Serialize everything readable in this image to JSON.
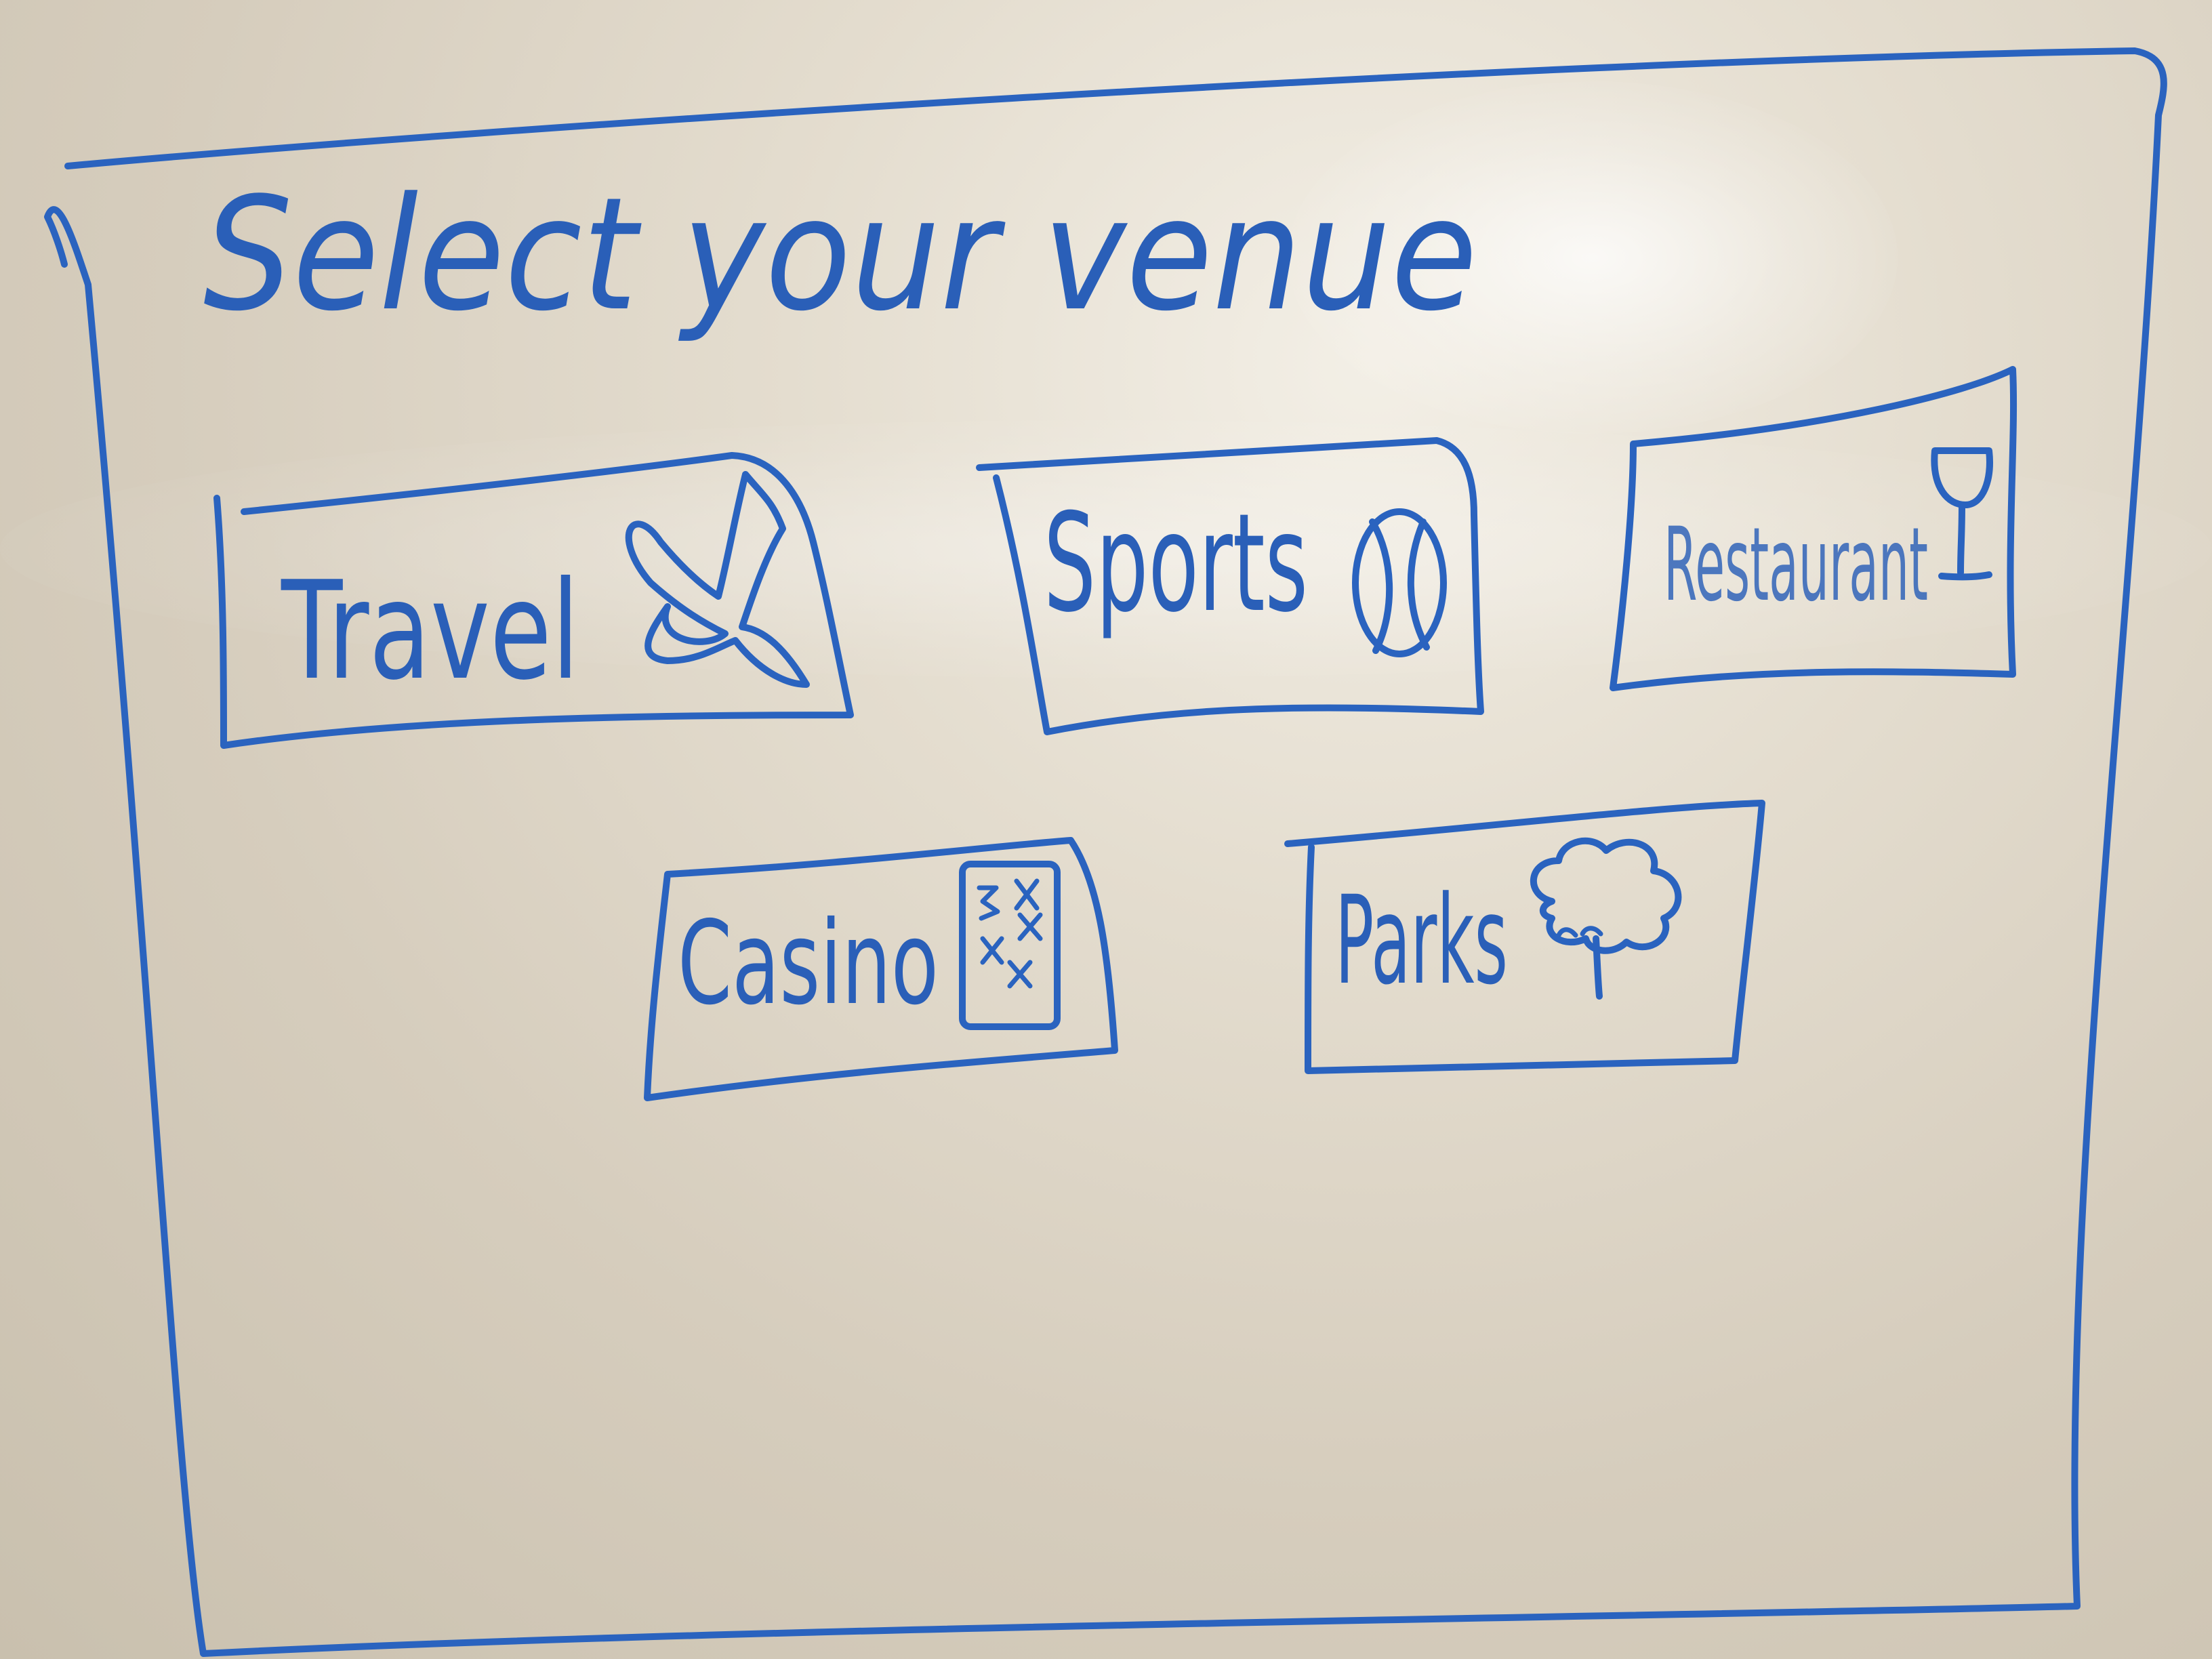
{
  "screen": {
    "title": "Select your venue"
  },
  "venues": [
    {
      "label": "Travel",
      "icon": "plane-icon"
    },
    {
      "label": "Sports",
      "icon": "ball-icon"
    },
    {
      "label": "Restaurant",
      "icon": "wine-glass-icon"
    },
    {
      "label": "Casino",
      "icon": "playing-card-icon"
    },
    {
      "label": "Parks",
      "icon": "tree-icon"
    }
  ],
  "colors": {
    "ink": "#2a63bf",
    "board": "#ddd5c6"
  }
}
